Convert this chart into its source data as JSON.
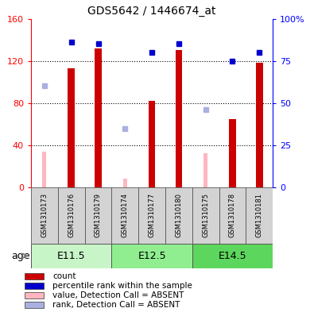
{
  "title": "GDS5642 / 1446674_at",
  "samples": [
    "GSM1310173",
    "GSM1310176",
    "GSM1310179",
    "GSM1310174",
    "GSM1310177",
    "GSM1310180",
    "GSM1310175",
    "GSM1310178",
    "GSM1310181"
  ],
  "groups": [
    {
      "label": "E11.5",
      "indices": [
        0,
        1,
        2
      ]
    },
    {
      "label": "E12.5",
      "indices": [
        3,
        4,
        5
      ]
    },
    {
      "label": "E14.5",
      "indices": [
        6,
        7,
        8
      ]
    }
  ],
  "group_colors": [
    "#c8f5c8",
    "#90ee90",
    "#5cd65c"
  ],
  "count_values": [
    null,
    113,
    132,
    null,
    82,
    130,
    null,
    65,
    118
  ],
  "rank_values": [
    null,
    86,
    85,
    null,
    80,
    85,
    null,
    75,
    80
  ],
  "absent_value": [
    34,
    null,
    null,
    8,
    null,
    null,
    32,
    null,
    null
  ],
  "absent_rank": [
    60,
    null,
    null,
    35,
    null,
    null,
    46,
    null,
    null
  ],
  "ylim_left": [
    0,
    160
  ],
  "ylim_right": [
    0,
    100
  ],
  "yticks_left": [
    0,
    40,
    80,
    120,
    160
  ],
  "yticks_right": [
    0,
    25,
    50,
    75,
    100
  ],
  "yticklabels_right": [
    "0",
    "25",
    "50",
    "75",
    "100%"
  ],
  "bar_color": "#cc0000",
  "rank_color": "#0000cc",
  "absent_bar_color": "#ffb6c1",
  "absent_rank_color": "#aab0e0",
  "bar_width": 0.25,
  "rank_square_size": 5,
  "absent_bar_width": 0.15
}
